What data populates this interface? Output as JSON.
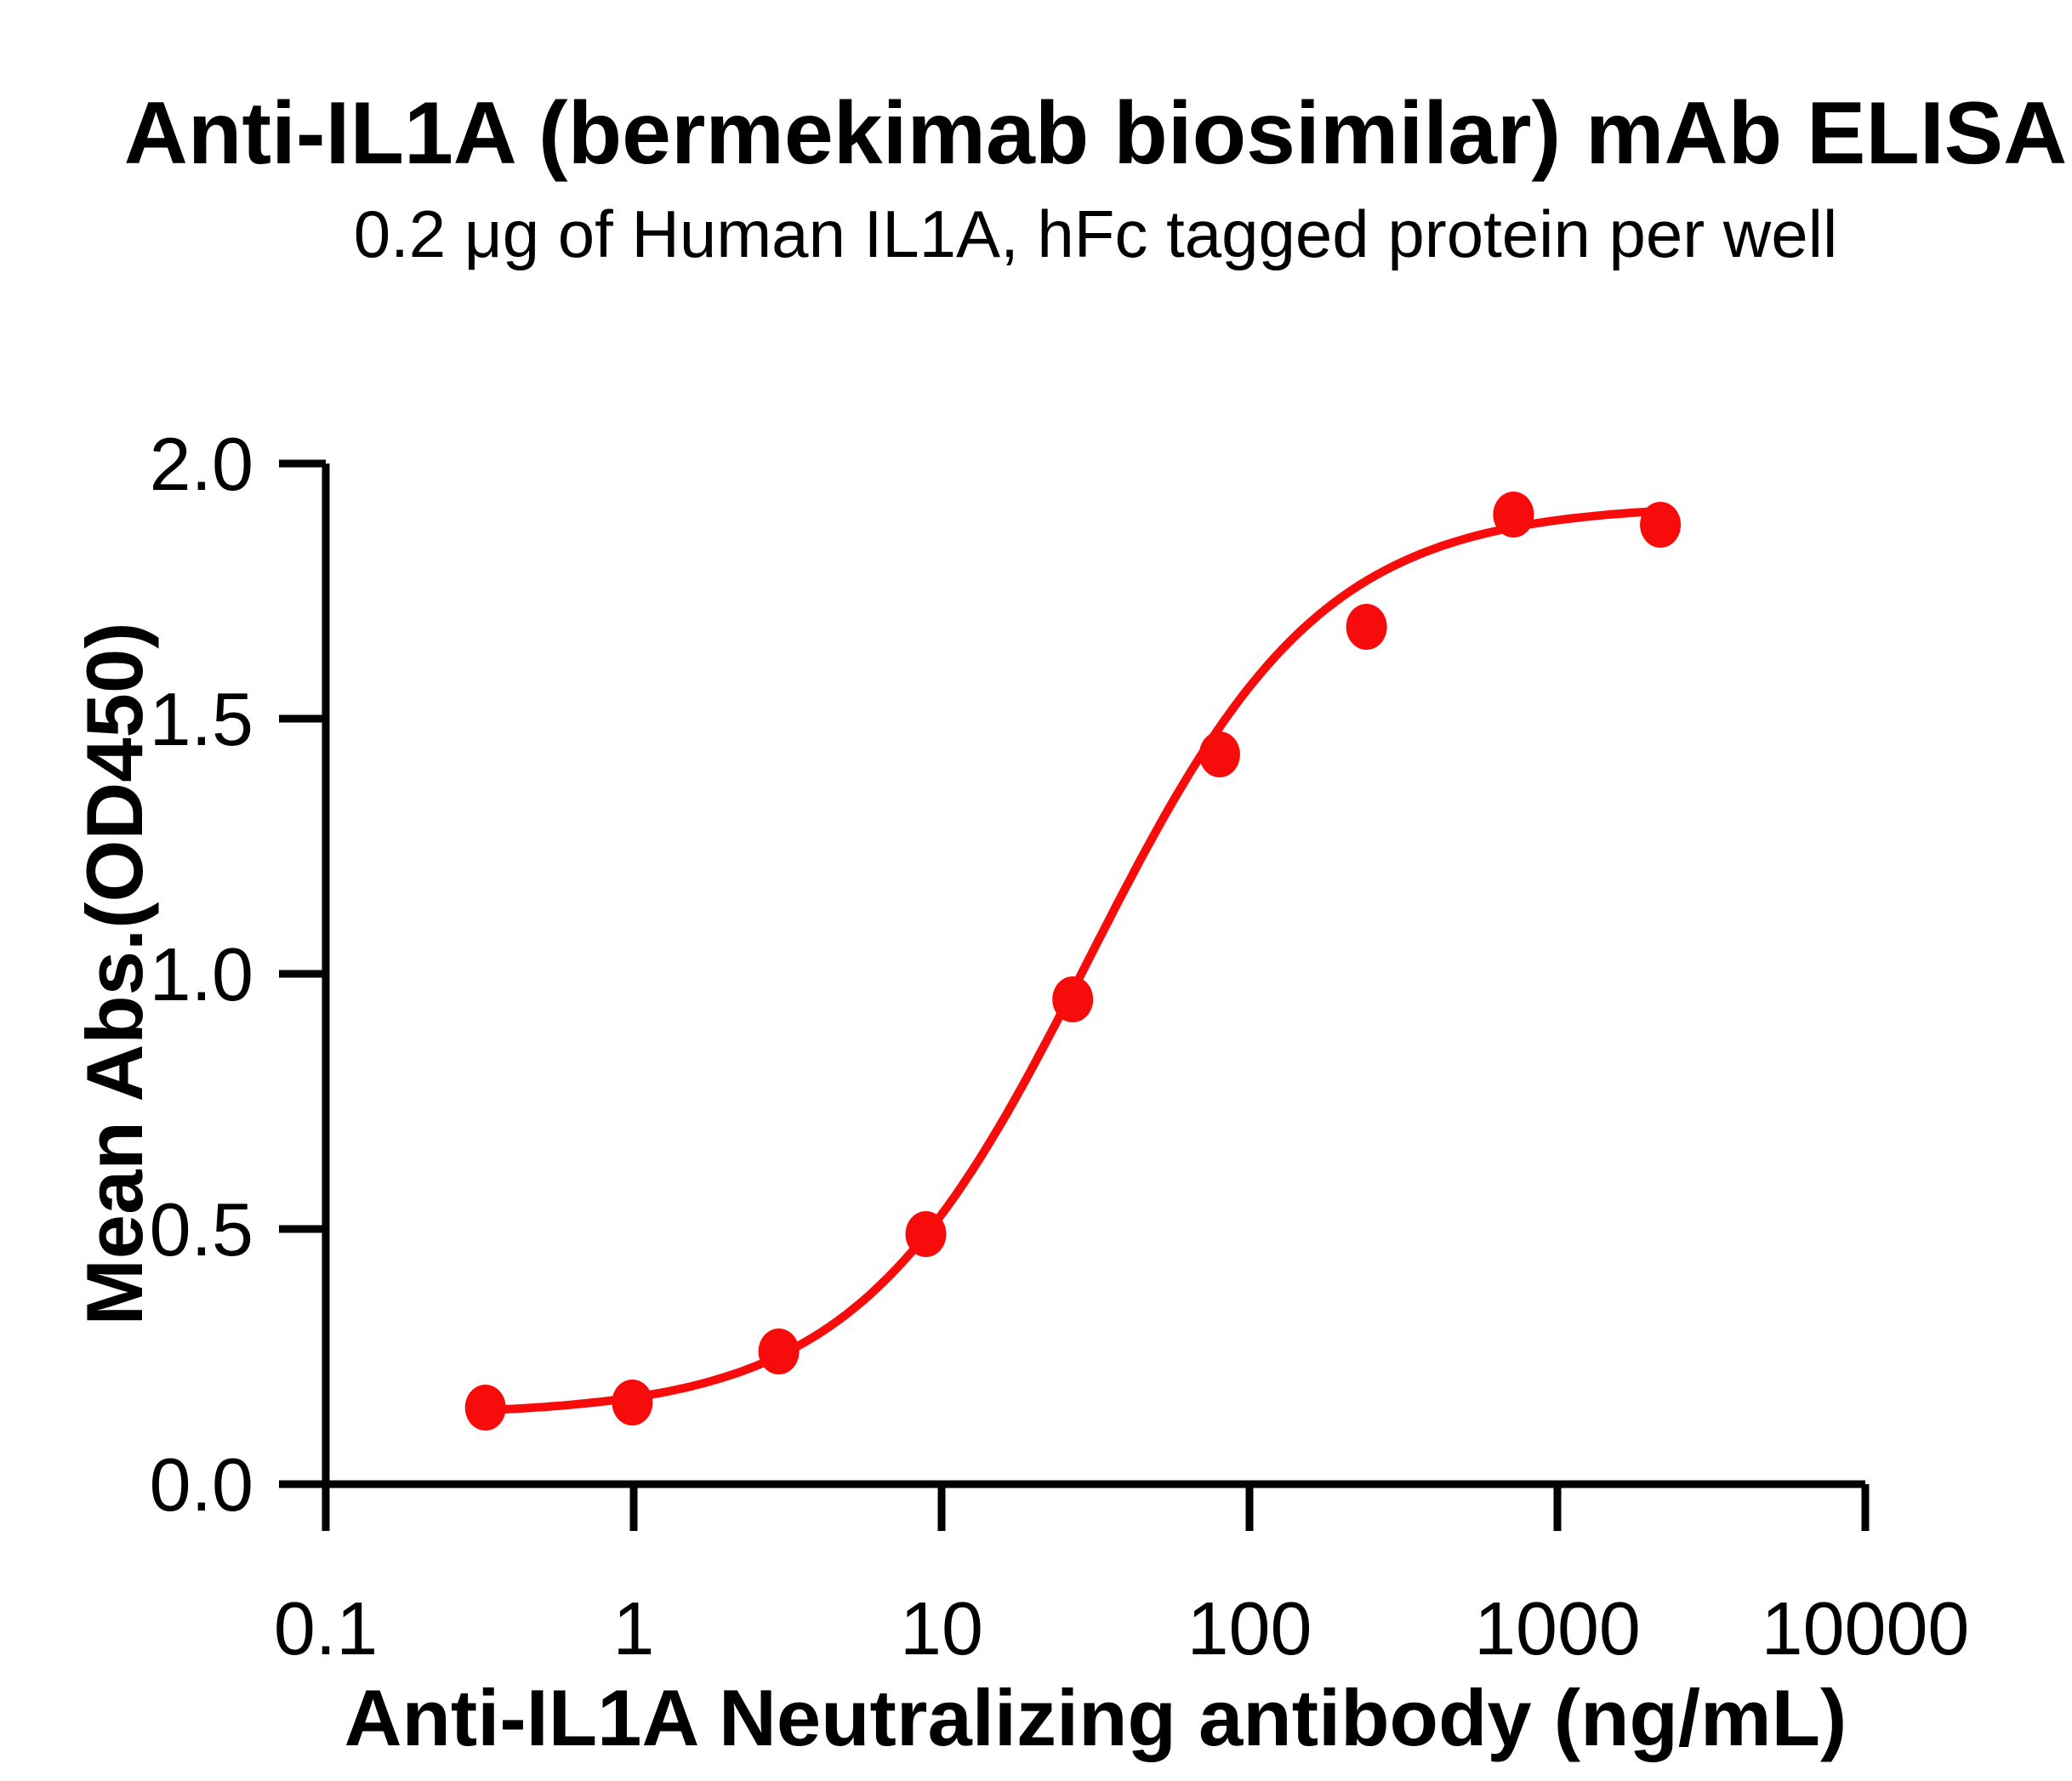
{
  "colors": {
    "accent_red": "#F80B0B",
    "axis_black": "#000000",
    "background": "#FFFFFF"
  },
  "chart_data": {
    "type": "scatter",
    "title": "Anti-IL1A (bermekimab biosimilar) mAb ELISA",
    "subtitle": "0.2 μg of Human IL1A, hFc tagged protein per well",
    "xlabel": "Anti-IL1A Neutralizing antibody (ng/mL)",
    "ylabel": "Mean Abs.(OD450)",
    "x_scale": "log10",
    "xlim": [
      0.1,
      10000
    ],
    "ylim": [
      0.0,
      2.0
    ],
    "grid": false,
    "legend": "none",
    "x_ticks": [
      0.1,
      1,
      10,
      100,
      1000,
      10000
    ],
    "x_tick_labels": [
      "0.1",
      "1",
      "10",
      "100",
      "1000",
      "10000"
    ],
    "y_ticks": [
      0.0,
      0.5,
      1.0,
      1.5,
      2.0
    ],
    "y_tick_labels": [
      "0.0",
      "0.5",
      "1.0",
      "1.5",
      "2.0"
    ],
    "series": [
      {
        "name": "Anti-IL1A neutralizing antibody",
        "color": "#F80B0B",
        "marker": "circle",
        "points": [
          {
            "x": 0.33,
            "y": 0.15
          },
          {
            "x": 0.99,
            "y": 0.16
          },
          {
            "x": 2.96,
            "y": 0.26
          },
          {
            "x": 8.89,
            "y": 0.49
          },
          {
            "x": 26.67,
            "y": 0.95
          },
          {
            "x": 80,
            "y": 1.43
          },
          {
            "x": 240,
            "y": 1.68
          },
          {
            "x": 720,
            "y": 1.9
          },
          {
            "x": 2160,
            "y": 1.88
          }
        ]
      }
    ],
    "fit_curve": {
      "model": "4PL",
      "bottom": 0.135,
      "top": 1.92,
      "ec50": 30,
      "hill": 1.15,
      "x_start": 0.33,
      "x_end": 2160
    }
  }
}
